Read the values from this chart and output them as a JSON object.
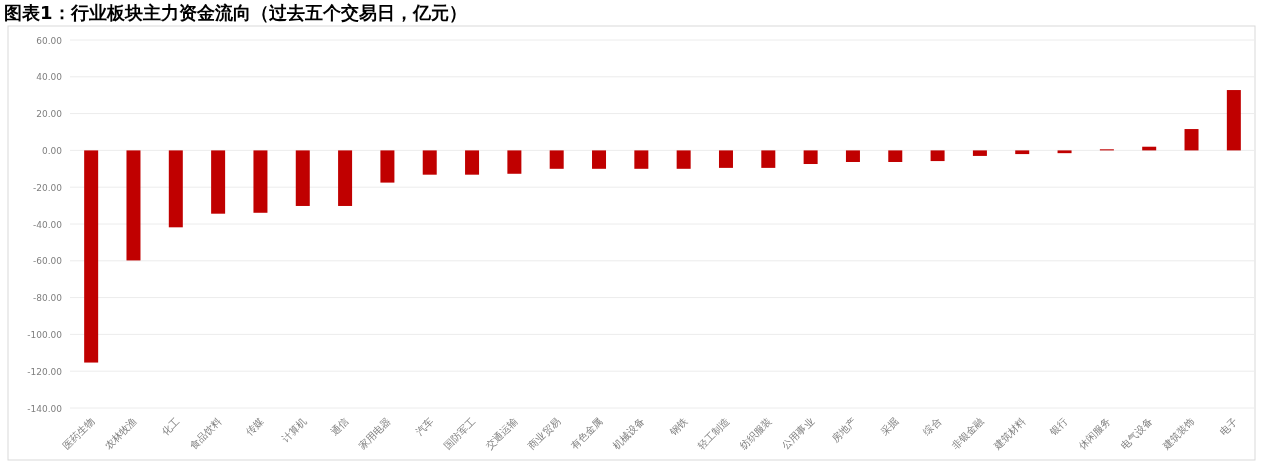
{
  "chart_data": {
    "type": "bar",
    "title": "图表1：行业板块主力资金流向（过去五个交易日，亿元）",
    "categories": [
      "医药生物",
      "农林牧渔",
      "化工",
      "食品饮料",
      "传媒",
      "计算机",
      "通信",
      "家用电器",
      "汽车",
      "国防军工",
      "交通运输",
      "商业贸易",
      "有色金属",
      "机械设备",
      "钢铁",
      "轻工制造",
      "纺织服装",
      "公用事业",
      "房地产",
      "采掘",
      "综合",
      "非银金融",
      "建筑材料",
      "银行",
      "休闲服务",
      "电气设备",
      "建筑装饰",
      "电子"
    ],
    "values": [
      -115.3,
      -59.8,
      -41.8,
      -34.4,
      -33.9,
      -30.2,
      -30.2,
      -17.5,
      -13.2,
      -13.2,
      -12.7,
      -10,
      -10,
      -10,
      -10,
      -9.5,
      -9.5,
      -7.4,
      -6.3,
      -6.3,
      -5.8,
      -3,
      -2,
      -1.5,
      0.6,
      2,
      11.6,
      32.8
    ],
    "color": "#c00000",
    "ylim": [
      -140,
      60
    ],
    "yticks": [
      {
        "value": -140,
        "label": "-140.00"
      },
      {
        "value": -120,
        "label": "-120.00"
      },
      {
        "value": -100,
        "label": "-100.00"
      },
      {
        "value": -80,
        "label": "-80.00"
      },
      {
        "value": -60,
        "label": "-60.00"
      },
      {
        "value": -40,
        "label": "-40.00"
      },
      {
        "value": -20,
        "label": "-20.00"
      },
      {
        "value": 0,
        "label": "0.00"
      },
      {
        "value": 20,
        "label": "20.00"
      },
      {
        "value": 40,
        "label": "40.00"
      },
      {
        "value": 60,
        "label": "60.00"
      }
    ],
    "grid": "y"
  }
}
